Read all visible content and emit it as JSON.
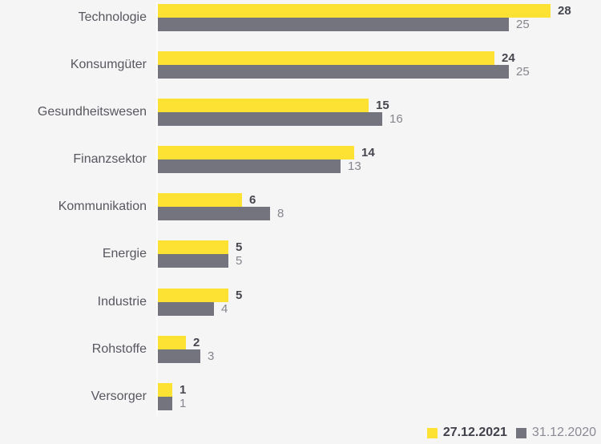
{
  "chart_data": {
    "type": "bar",
    "orientation": "horizontal",
    "title": "",
    "categories": [
      "Technologie",
      "Konsumgüter",
      "Gesundheitswesen",
      "Finanzsektor",
      "Kommunikation",
      "Energie",
      "Industrie",
      "Rohstoffe",
      "Versorger"
    ],
    "series": [
      {
        "name": "27.12.2021",
        "color": "#fde233",
        "values": [
          28,
          24,
          15,
          14,
          6,
          5,
          5,
          2,
          1
        ]
      },
      {
        "name": "31.12.2020",
        "color": "#74747e",
        "values": [
          25,
          25,
          16,
          13,
          8,
          5,
          4,
          3,
          1
        ]
      }
    ],
    "xlim": [
      0,
      30
    ],
    "value_labels_shown": true,
    "grid": false,
    "legend_position": "bottom-right"
  },
  "colors": {
    "background": "#f5f5f6",
    "series_current": "#fde233",
    "series_previous": "#74747e",
    "category_label": "#57575f",
    "value_label_current": "#46464f",
    "value_label_previous": "#85858d",
    "legend_label_current": "#40404a",
    "legend_label_previous": "#8a8a93"
  }
}
